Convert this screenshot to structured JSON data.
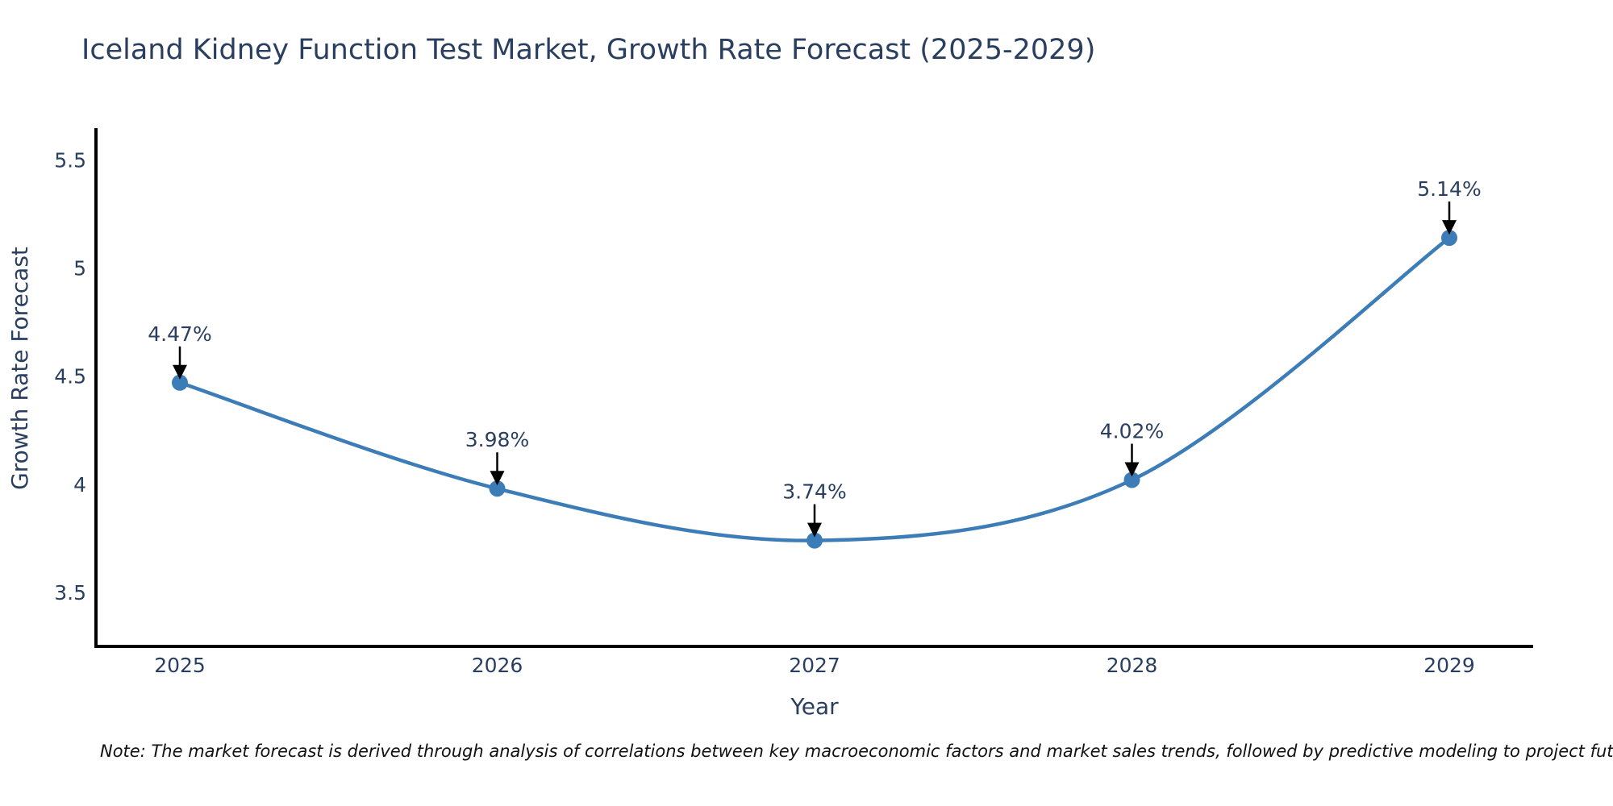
{
  "title": "Iceland Kidney Function Test Market, Growth Rate Forecast (2025-2029)",
  "note": "Note: The market forecast is derived through analysis of correlations between key macroeconomic factors and market sales trends, followed by predictive modeling to project future sales",
  "chart_data": {
    "type": "line",
    "title": "Iceland Kidney Function Test Market, Growth Rate Forecast (2025-2029)",
    "xlabel": "Year",
    "ylabel": "Growth Rate Forecast",
    "categories": [
      "2025",
      "2026",
      "2027",
      "2028",
      "2029"
    ],
    "series": [
      {
        "name": "Growth Rate Forecast",
        "values": [
          4.47,
          3.98,
          3.74,
          4.02,
          5.14
        ],
        "point_labels": [
          "4.47%",
          "3.98%",
          "3.74%",
          "4.02%",
          "5.14%"
        ]
      }
    ],
    "yticks": [
      3.5,
      4,
      4.5,
      5,
      5.5
    ],
    "ytick_labels": [
      "3.5",
      "4",
      "4.5",
      "5",
      "5.5"
    ],
    "ylim": [
      3.25,
      5.64
    ],
    "grid": false,
    "legend": false,
    "smooth": true,
    "annotation_arrows": true,
    "line_color": "#3c7db8",
    "marker_color": "#3c7db8",
    "arrow_color": "#000000",
    "axis_color": "#000000",
    "text_color": "#2a3f5f"
  }
}
